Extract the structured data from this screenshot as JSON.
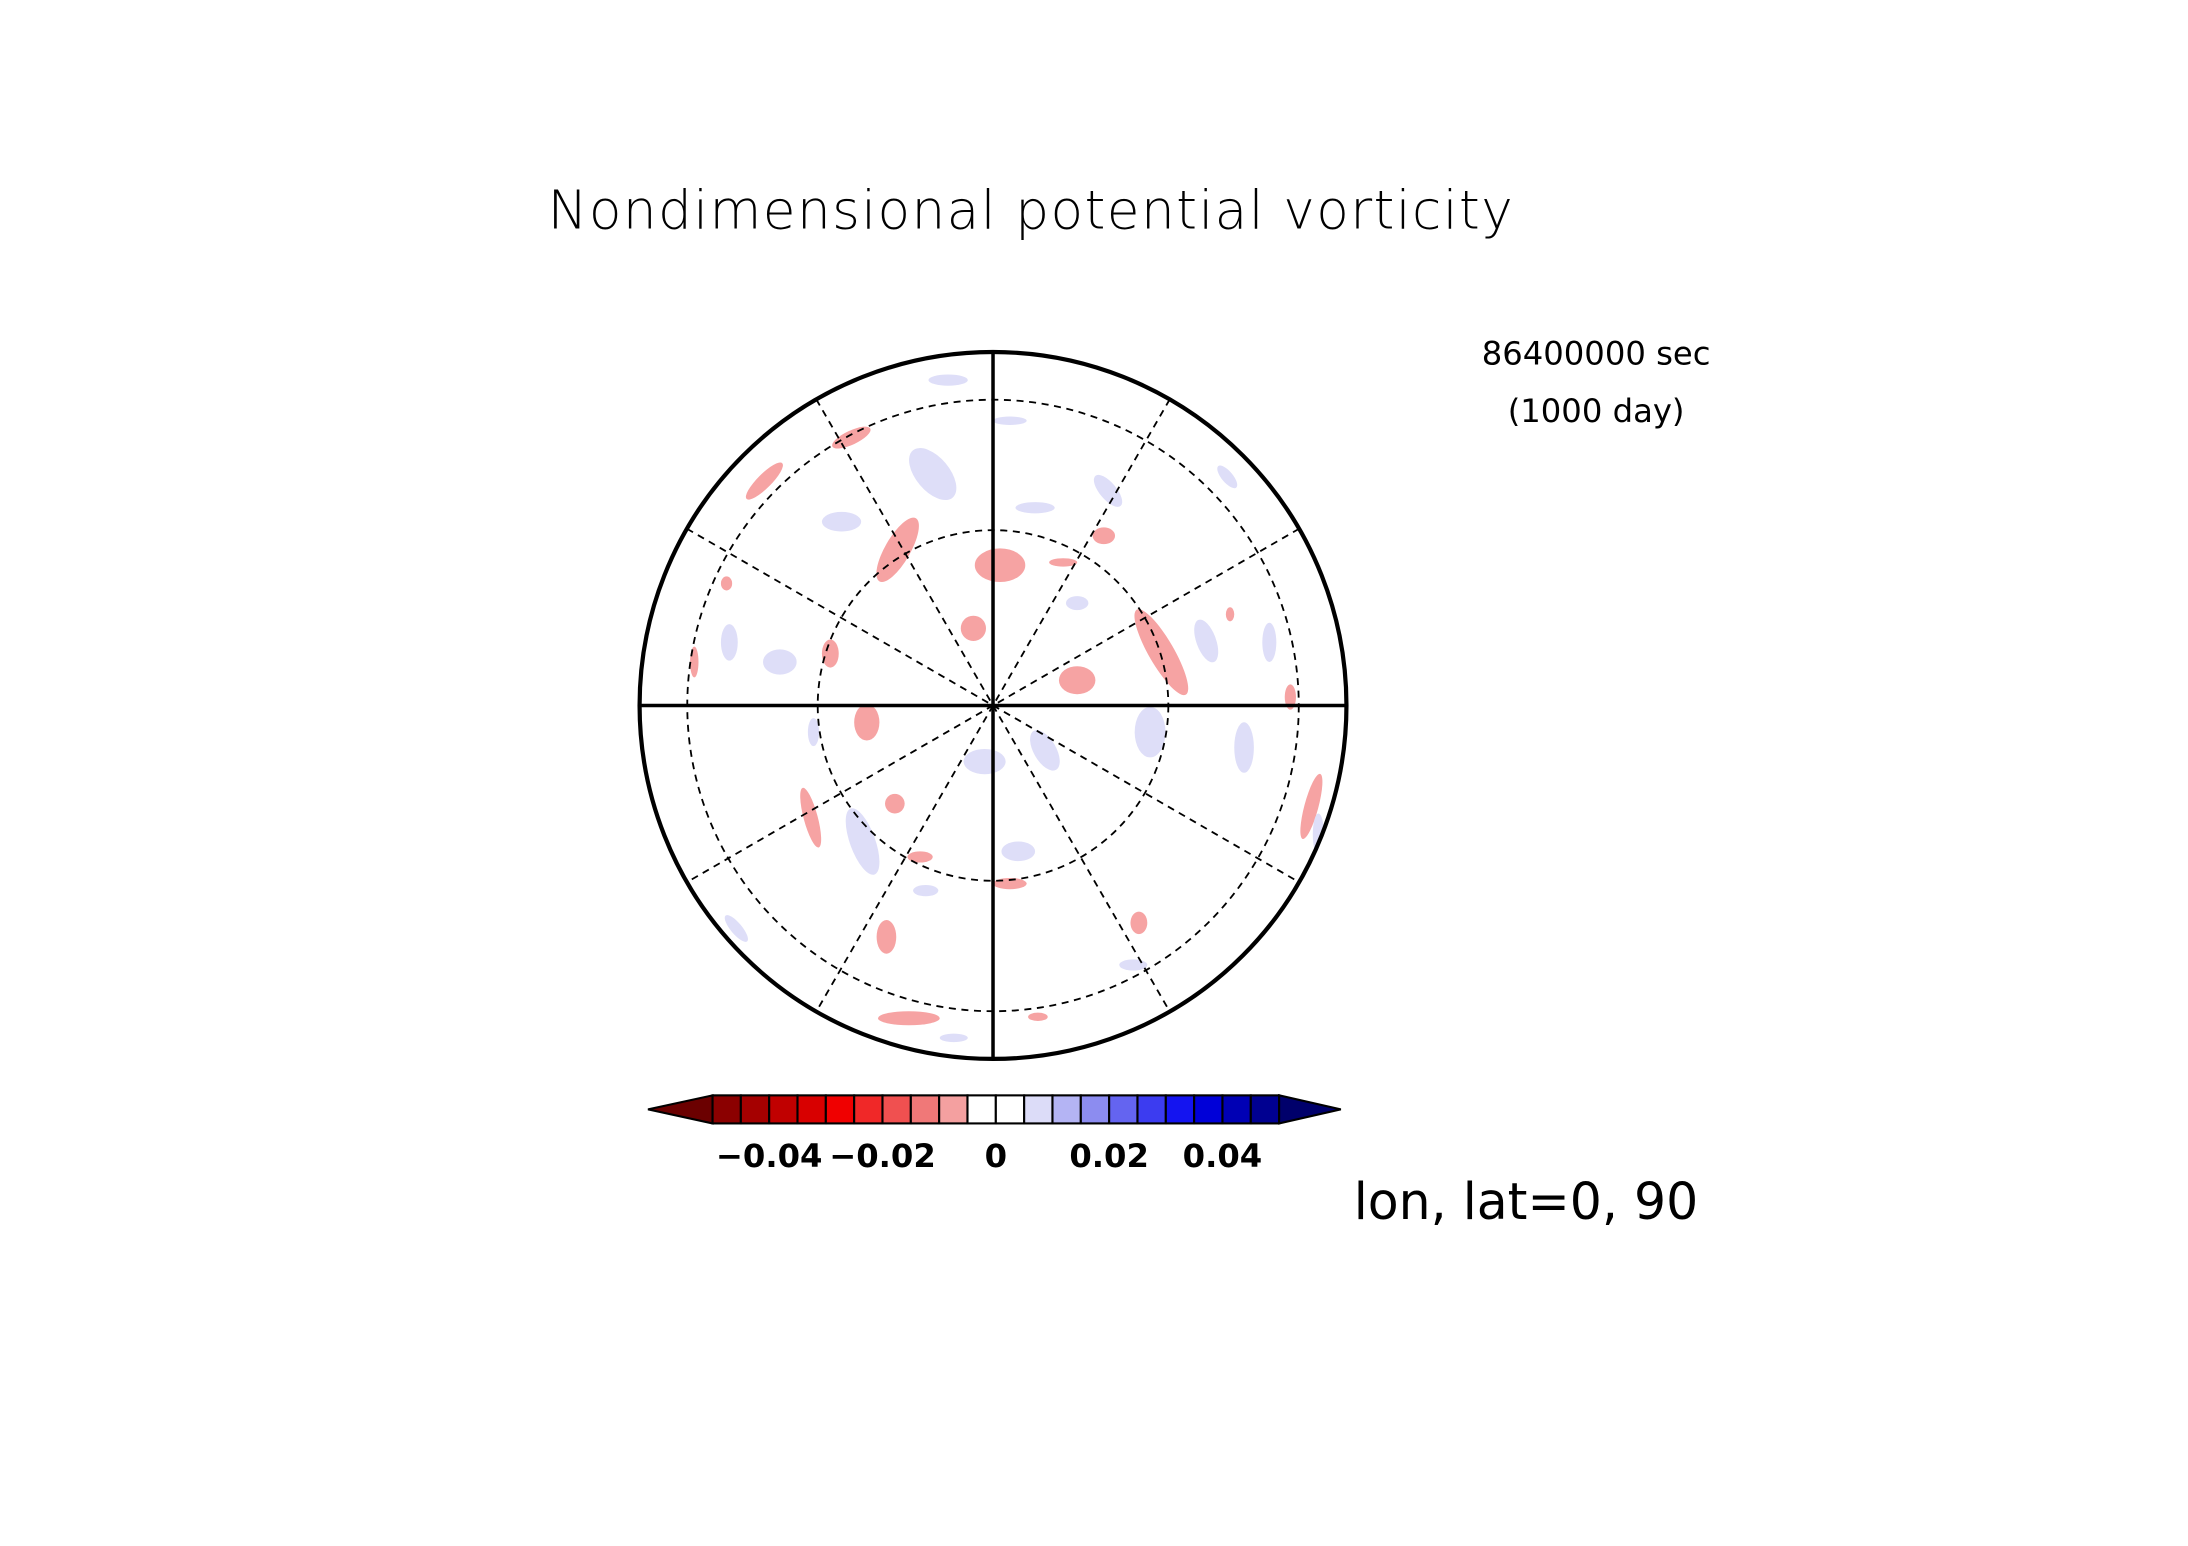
{
  "chart_data": {
    "type": "contour",
    "title": "Nondimensional potential vorticity",
    "time_label": "86400000 sec",
    "day_label": "(1000 day)",
    "subtitle": "lon, lat=0, 90",
    "colorbar": {
      "levels": [
        -0.05,
        -0.045,
        -0.04,
        -0.035,
        -0.03,
        -0.025,
        -0.02,
        -0.015,
        -0.01,
        -0.005,
        0,
        0.005,
        0.01,
        0.015,
        0.02,
        0.025,
        0.03,
        0.035,
        0.04,
        0.045,
        0.05
      ],
      "colors": [
        "#8b0000",
        "#a50000",
        "#c00000",
        "#d80000",
        "#f00000",
        "#f02828",
        "#f05050",
        "#f07878",
        "#f4a0a0",
        "#ffffff",
        "#ffffff",
        "#dcdcf8",
        "#b4b4f4",
        "#8c8cf0",
        "#6464f0",
        "#3c3cf0",
        "#1414f0",
        "#0000d8",
        "#0000b4",
        "#000090"
      ],
      "extend_colors": [
        "#6b0000",
        "#00006b"
      ],
      "ticks": [
        {
          "value": -0.04,
          "label": "−0.04"
        },
        {
          "value": -0.02,
          "label": "−0.02"
        },
        0,
        0.02,
        0.04
      ]
    }
  }
}
